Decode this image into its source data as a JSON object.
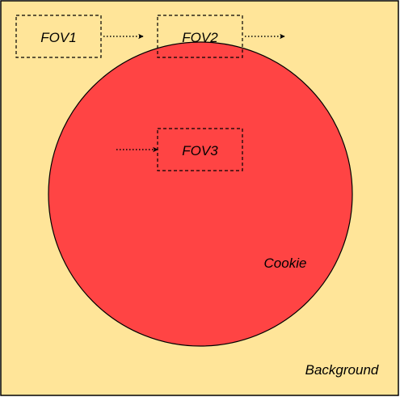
{
  "colors": {
    "background_fill": "#FFE599",
    "cookie_fill": "#FF4444",
    "stroke": "#000000"
  },
  "regions": {
    "background_label": "Background",
    "cookie_label": "Cookie"
  },
  "fovs": [
    {
      "id": "fov1",
      "label": "FOV1"
    },
    {
      "id": "fov2",
      "label": "FOV2"
    },
    {
      "id": "fov3",
      "label": "FOV3"
    }
  ],
  "arrows": [
    {
      "id": "fov1-out",
      "style": "dotted"
    },
    {
      "id": "fov2-out",
      "style": "dotted"
    },
    {
      "id": "fov3-in",
      "style": "dotted"
    }
  ]
}
